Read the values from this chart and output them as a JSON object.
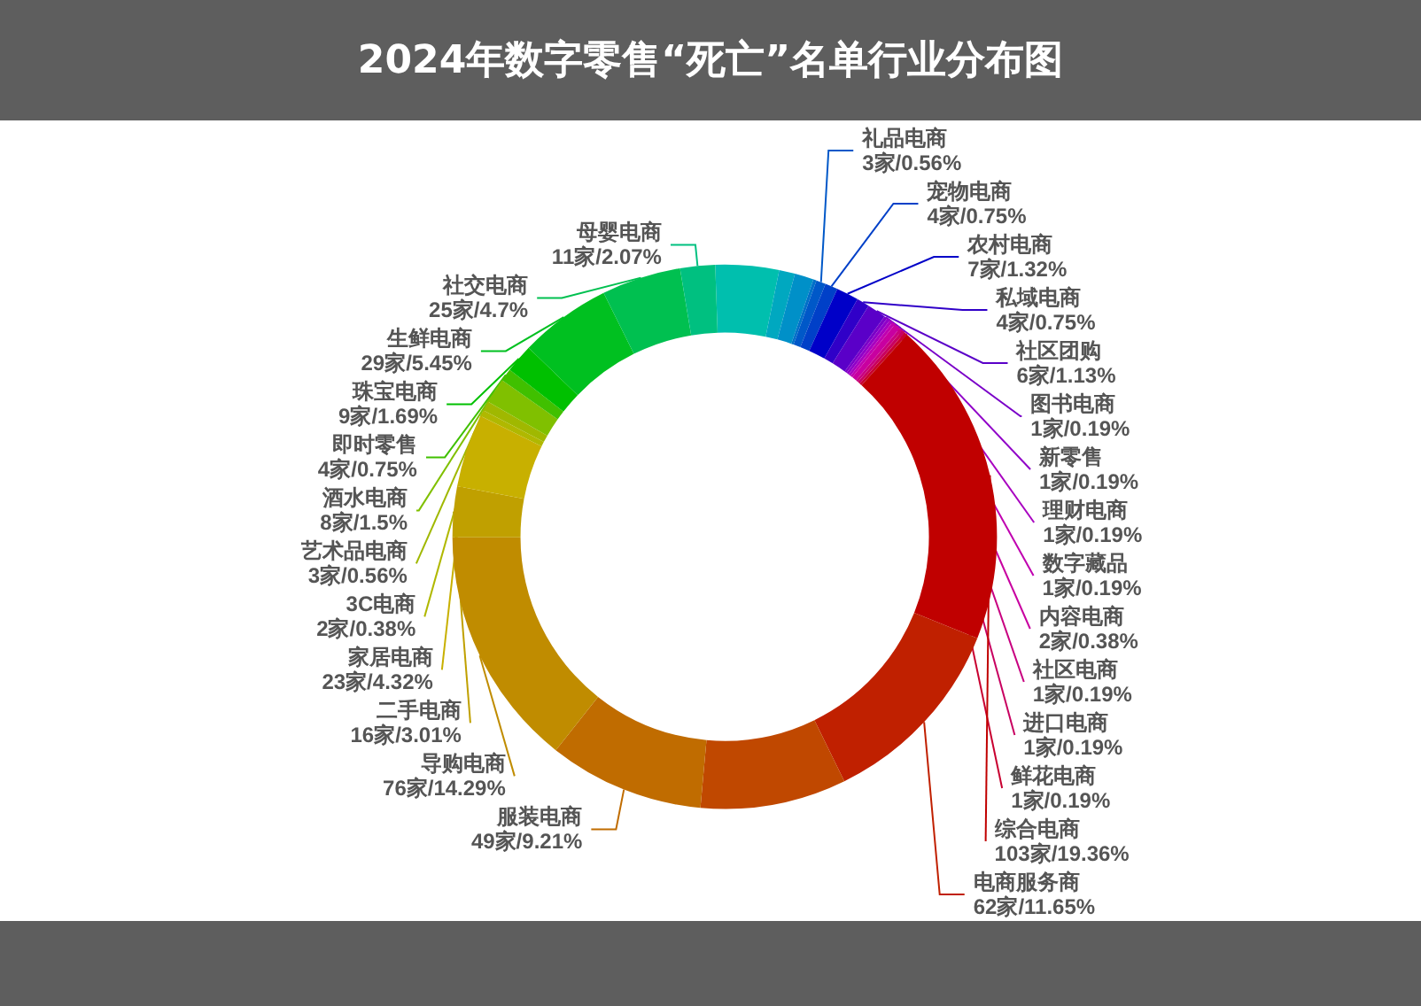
{
  "chart_data": {
    "type": "donut",
    "title": "2024年数字零售“死亡”名单行业分布图",
    "categories": [
      null,
      null,
      null,
      null,
      "礼品电商",
      "宠物电商",
      "农村电商",
      "私域电商",
      "社区团购",
      "图书电商",
      "新零售",
      "理财电商",
      "数字藏品",
      "内容电商",
      "社区电商",
      "进口电商",
      "鲜花电商",
      "综合电商",
      "电商服务商",
      null,
      "服装电商",
      "导购电商",
      "二手电商",
      "家居电商",
      "3C电商",
      "艺术品电商",
      "酒水电商",
      "即时零售",
      "珠宝电商",
      "生鲜电商",
      "社交电商",
      "母婴电商"
    ],
    "values": [
      20,
      5,
      6,
      1,
      3,
      4,
      7,
      4,
      6,
      1,
      1,
      1,
      1,
      2,
      1,
      1,
      1,
      103,
      62,
      46,
      49,
      76,
      16,
      23,
      2,
      3,
      8,
      4,
      9,
      29,
      25,
      11
    ],
    "value_labels": [
      null,
      null,
      null,
      null,
      "3家/0.56%",
      "4家/0.75%",
      "7家/1.32%",
      "4家/0.75%",
      "6家/1.13%",
      "1家/0.19%",
      "1家/0.19%",
      "1家/0.19%",
      "1家/0.19%",
      "2家/0.38%",
      "1家/0.19%",
      "1家/0.19%",
      "1家/0.19%",
      "103家/19.36%",
      "62家/11.65%",
      null,
      "49家/9.21%",
      "76家/14.29%",
      "16家/3.01%",
      "23家/4.32%",
      "2家/0.38%",
      "3家/0.56%",
      "8家/1.5%",
      "4家/0.75%",
      "9家/1.69%",
      "29家/5.45%",
      "25家/4.7%",
      "11家/2.07%"
    ],
    "colors": [
      "#00bfae",
      "#00a8c0",
      "#0090c8",
      "#0070c8",
      "#0058c8",
      "#0040c8",
      "#0000c8",
      "#3000c8",
      "#5a00c8",
      "#7a00c8",
      "#9000c8",
      "#a800c0",
      "#c000b0",
      "#c800a0",
      "#c80080",
      "#c80060",
      "#c80030",
      "#c00000",
      "#c02000",
      "#c04800",
      "#c06c00",
      "#c08c00",
      "#c0a000",
      "#c8b000",
      "#b0b800",
      "#a0b800",
      "#80c000",
      "#40c000",
      "#00c000",
      "#00c020",
      "#00c050",
      "#00c080"
    ],
    "legend": false
  }
}
